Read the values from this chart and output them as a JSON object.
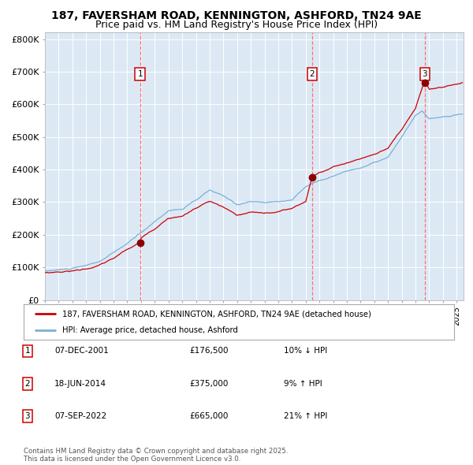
{
  "title": "187, FAVERSHAM ROAD, KENNINGTON, ASHFORD, TN24 9AE",
  "subtitle": "Price paid vs. HM Land Registry's House Price Index (HPI)",
  "title_fontsize": 10,
  "subtitle_fontsize": 9,
  "background_color": "#dce9f5",
  "plot_bg_color": "#dce9f5",
  "outer_bg_color": "#ffffff",
  "hpi_color": "#7ab0d4",
  "price_color": "#cc0000",
  "sale_marker_color": "#8b0000",
  "vline_color": "#ff6666",
  "ylim": [
    0,
    820000
  ],
  "yticks": [
    0,
    100000,
    200000,
    300000,
    400000,
    500000,
    600000,
    700000,
    800000
  ],
  "ytick_labels": [
    "£0",
    "£100K",
    "£200K",
    "£300K",
    "£400K",
    "£500K",
    "£600K",
    "£700K",
    "£800K"
  ],
  "grid_color": "#ffffff",
  "legend_entries": [
    "187, FAVERSHAM ROAD, KENNINGTON, ASHFORD, TN24 9AE (detached house)",
    "HPI: Average price, detached house, Ashford"
  ],
  "sales": [
    {
      "num": 1,
      "date_label": "07-DEC-2001",
      "price": 176500,
      "pct": "10%",
      "dir": "↓",
      "year": 2001.93
    },
    {
      "num": 2,
      "date_label": "18-JUN-2014",
      "price": 375000,
      "pct": "9%",
      "dir": "↑",
      "year": 2014.46
    },
    {
      "num": 3,
      "date_label": "07-SEP-2022",
      "price": 665000,
      "pct": "21%",
      "dir": "↑",
      "year": 2022.68
    }
  ],
  "footer": "Contains HM Land Registry data © Crown copyright and database right 2025.\nThis data is licensed under the Open Government Licence v3.0.",
  "start_year": 1995.0,
  "end_year": 2025.5
}
